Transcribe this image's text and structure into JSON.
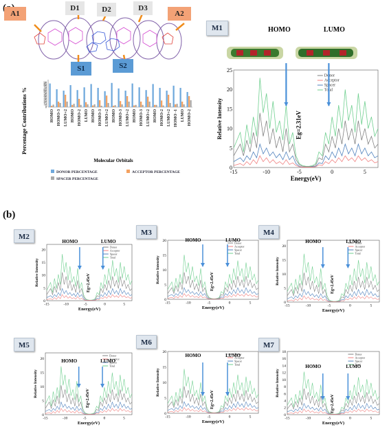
{
  "panels": {
    "a": "(a)",
    "b": "(b)"
  },
  "molecule_tags": {
    "A1": "A1",
    "A2": "A2",
    "D1": "D1",
    "D2": "D2",
    "D3": "D3",
    "S1": "S1",
    "S2": "S2"
  },
  "colors": {
    "donor": "#808080",
    "acceptor": "#f08080",
    "spacer": "#4f81bd",
    "total": "#6fcf8f",
    "bar_donor": "#6fa8dc",
    "bar_acceptor": "#f4a261",
    "bar_spacer": "#a9a9a9",
    "arrow": "#4a90d9"
  },
  "bar_chart": {
    "ylabel": "Percentage Contributions %",
    "xlabel": "Molecular Orbitals",
    "legend": [
      "DONOR PERCENTAGE",
      "ACCEPTOR PERCENTAGE",
      "SPACER PERCENTAGE"
    ]
  },
  "chart_data": [
    {
      "type": "bar",
      "title": "",
      "xlabel": "Molecular Orbitals",
      "ylabel": "Percentage Contributions %",
      "ylim": [
        0,
        100
      ],
      "yticks": [
        0,
        5,
        10,
        15,
        20,
        25,
        30,
        35,
        40,
        45,
        50,
        55,
        60,
        65,
        70,
        75,
        80,
        85,
        90
      ],
      "categories": [
        "HOMO",
        "HOMO-3",
        "LUMO+2",
        "HOMO",
        "HOMO-2",
        "LUMO",
        "HOMO",
        "HOMO-3",
        "LUMO+2",
        "HOMO",
        "HOMO-3",
        "LUMO+2",
        "HOMO",
        "HOMO-3",
        "LUMO+2",
        "HOMO",
        "HOMO-2",
        "LUMO+2",
        "HOMO -1",
        "LUMO",
        "HOMO-2"
      ],
      "series": [
        {
          "name": "DONOR PERCENTAGE",
          "values": [
            86,
            65,
            60,
            80,
            62,
            72,
            84,
            70,
            58,
            88,
            68,
            60,
            86,
            72,
            62,
            84,
            70,
            60,
            78,
            70,
            55
          ]
        },
        {
          "name": "ACCEPTOR PERCENTAGE",
          "values": [
            5,
            20,
            45,
            8,
            30,
            18,
            6,
            25,
            42,
            5,
            22,
            40,
            6,
            20,
            38,
            8,
            24,
            45,
            10,
            20,
            40
          ]
        },
        {
          "name": "SPACER PERCENTAGE",
          "values": [
            9,
            15,
            20,
            12,
            8,
            10,
            10,
            5,
            15,
            7,
            10,
            20,
            8,
            8,
            20,
            8,
            6,
            15,
            12,
            10,
            25
          ]
        }
      ],
      "legend_position": "bottom",
      "grid": false
    },
    {
      "type": "line",
      "id": "M1",
      "xlabel": "Energy(eV)",
      "ylabel": "Relative Intensity",
      "xlim": [
        -15,
        7
      ],
      "ylim": [
        0,
        25
      ],
      "xticks": [
        -15,
        -10,
        -5,
        0,
        5
      ],
      "yticks": [
        0,
        5,
        10,
        15,
        20,
        25
      ],
      "legend": [
        "Donor",
        "Acceptor",
        "Spacer",
        "Total"
      ],
      "gap_label": "Eg=2.31eV",
      "homo_label": "HOMO",
      "lumo_label": "LUMO",
      "homo_x": -7,
      "lumo_x": -0.5,
      "x": [
        -15,
        -14,
        -13.5,
        -13,
        -12.5,
        -12,
        -11.5,
        -11,
        -10.5,
        -10,
        -9.5,
        -9,
        -8.5,
        -8,
        -7.5,
        -7,
        -6.5,
        -6,
        -5.5,
        -5,
        -4.5,
        -4,
        -3.5,
        -3,
        -2.5,
        -2,
        -1.5,
        -1,
        -0.5,
        0,
        0.5,
        1,
        1.5,
        2,
        2.5,
        3,
        3.5,
        4,
        4.5,
        5,
        5.5,
        6,
        6.5,
        7
      ],
      "series": [
        {
          "name": "Total",
          "values": [
            5,
            9,
            4,
            11,
            6,
            13,
            8,
            23,
            14,
            19,
            10,
            17,
            9,
            12,
            7,
            16,
            6,
            9,
            3,
            1,
            0.5,
            0.3,
            0.3,
            0.5,
            1,
            4,
            3,
            9,
            6,
            13,
            8,
            16,
            10,
            20,
            12,
            16,
            9,
            19,
            11,
            17,
            10,
            13,
            8,
            10
          ]
        },
        {
          "name": "Donor",
          "values": [
            3,
            6,
            3,
            7,
            4,
            9,
            5,
            14,
            8,
            12,
            6,
            10,
            5,
            8,
            4,
            10,
            4,
            6,
            2,
            0.7,
            0.3,
            0.2,
            0.2,
            0.3,
            0.6,
            2.5,
            2,
            6,
            4,
            8,
            5,
            10,
            6,
            12,
            7,
            10,
            6,
            12,
            7,
            10,
            6,
            8,
            5,
            6
          ]
        },
        {
          "name": "Spacer",
          "values": [
            1.5,
            2.5,
            1.5,
            3,
            2,
            4,
            2.5,
            6,
            3.5,
            5,
            3,
            4,
            2.5,
            3.5,
            2,
            4,
            2,
            3,
            1,
            0.3,
            0.1,
            0.1,
            0.1,
            0.2,
            0.3,
            1.2,
            1,
            3,
            2,
            4,
            2.5,
            5,
            3,
            6,
            3.5,
            5,
            3,
            6,
            3.5,
            5,
            3,
            4,
            2.5,
            3
          ]
        },
        {
          "name": "Acceptor",
          "values": [
            0.5,
            1,
            0.5,
            1.5,
            0.7,
            2,
            1,
            3,
            1.5,
            2.5,
            1.2,
            2,
            1,
            1.5,
            0.8,
            2,
            0.8,
            1.2,
            0.5,
            0.2,
            0.1,
            0.1,
            0.1,
            0.1,
            0.2,
            0.7,
            0.5,
            1.5,
            1,
            2,
            1.2,
            2.5,
            1.5,
            3,
            1.8,
            2.5,
            1.5,
            3,
            1.8,
            2.5,
            1.5,
            2,
            1.2,
            1.5
          ]
        }
      ]
    },
    {
      "type": "line",
      "id": "M2",
      "xlabel": "Energy(eV)",
      "ylabel": "Relative Intensity",
      "xlim": [
        -15,
        7
      ],
      "ylim": [
        0,
        22
      ],
      "yticks": [
        0,
        5,
        10,
        15,
        20
      ],
      "xticks": [
        -15,
        -10,
        -5,
        0,
        5
      ],
      "legend": [
        "Donor",
        "Acceptor",
        "Spacer",
        "Total"
      ],
      "gap_label": "Eg=2.45eV",
      "homo_label": "HOMO",
      "lumo_label": "LUMO"
    },
    {
      "type": "line",
      "id": "M3",
      "xlabel": "Energy(eV)",
      "ylabel": "Relative Intensity",
      "xlim": [
        -15,
        7
      ],
      "ylim": [
        0,
        20
      ],
      "yticks": [
        0,
        5,
        10,
        15,
        20
      ],
      "xticks": [
        -15,
        -10,
        -5,
        0,
        5
      ],
      "legend": [
        "Donor",
        "Acceptor",
        "Spacer",
        "Total"
      ],
      "gap_label": "Eg=2.45eV",
      "homo_label": "HOMO",
      "lumo_label": "LUMO"
    },
    {
      "type": "line",
      "id": "M4",
      "xlabel": "Energy(eV)",
      "ylabel": "Relative Intensity",
      "xlim": [
        -15,
        7
      ],
      "ylim": [
        0,
        22
      ],
      "yticks": [
        0,
        5,
        10,
        15,
        20
      ],
      "xticks": [
        -15,
        -10,
        -5,
        0,
        5
      ],
      "legend": [
        "Donor",
        "Acceptor",
        "Spacer",
        "Total"
      ],
      "gap_label": "Eg=2.45eV",
      "homo_label": "HOMO",
      "lumo_label": "LUMO"
    },
    {
      "type": "line",
      "id": "M5",
      "xlabel": "Energy(eV)",
      "ylabel": "Relative Intensity",
      "xlim": [
        -15,
        7
      ],
      "ylim": [
        0,
        22
      ],
      "yticks": [
        0,
        5,
        10,
        15,
        20
      ],
      "xticks": [
        -15,
        -10,
        -5,
        0,
        5
      ],
      "legend": [
        "Donor",
        "Acceptor",
        "Spacer",
        "Total"
      ],
      "gap_label": "Eg=2.45eV",
      "homo_label": "HOMO",
      "lumo_label": "LUMO"
    },
    {
      "type": "line",
      "id": "M6",
      "xlabel": "Energy(eV)",
      "ylabel": "Relative Intensity",
      "xlim": [
        -15,
        7
      ],
      "ylim": [
        0,
        20
      ],
      "yticks": [
        0,
        5,
        10,
        15,
        20
      ],
      "xticks": [
        -15,
        -10,
        -5,
        0,
        5
      ],
      "legend": [
        "Donor",
        "Acceptor",
        "Spacer",
        "Total"
      ],
      "gap_label": "Eg=2.45eV",
      "homo_label": "HOMO",
      "lumo_label": "LUMO"
    },
    {
      "type": "line",
      "id": "M7",
      "xlabel": "Energy(eV)",
      "ylabel": "Relative Intensity",
      "xlim": [
        -15,
        7
      ],
      "ylim": [
        0,
        18
      ],
      "yticks": [
        0,
        2,
        4,
        6,
        8,
        10,
        12,
        14,
        16,
        18
      ],
      "xticks": [
        -15,
        -10,
        -5,
        0,
        5
      ],
      "legend": [
        "Donor",
        "Acceptor",
        "Spacer",
        "Total"
      ],
      "gap_label": "Eg=2.45eV",
      "homo_label": "HOMO",
      "lumo_label": "LUMO"
    }
  ]
}
